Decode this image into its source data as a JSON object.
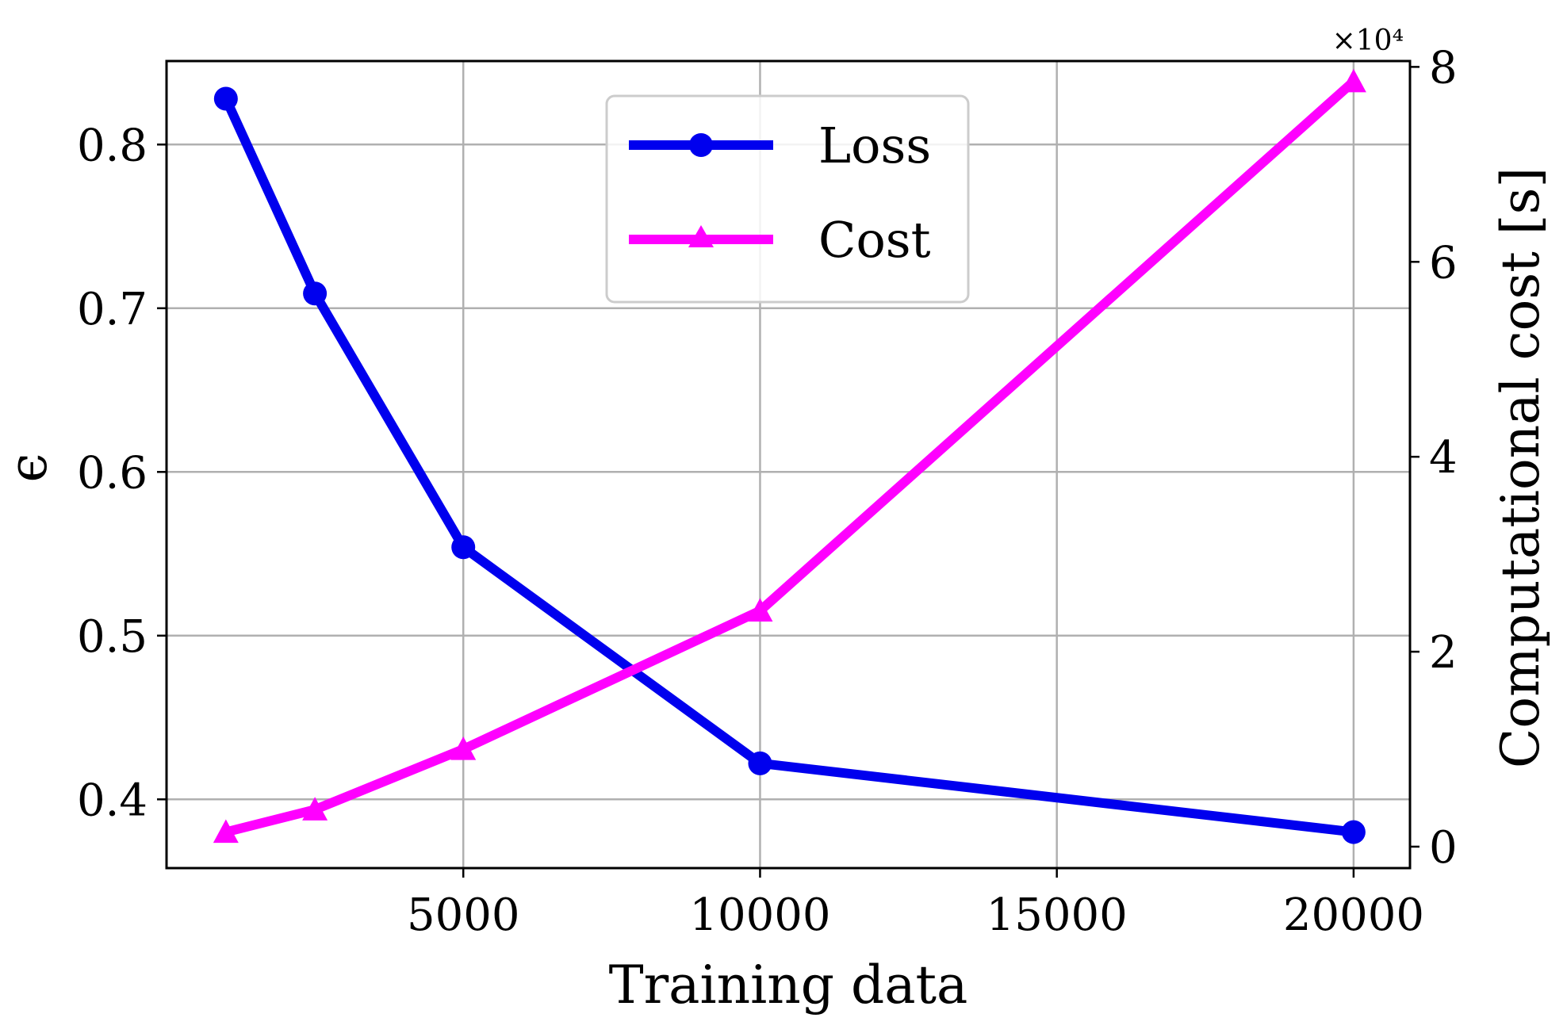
{
  "chart_data": {
    "type": "line",
    "title": "",
    "xlabel": "Training data",
    "ylabel": "ϵ",
    "y2label": "Computational cost [s]",
    "y2_offset_text": "×10⁴",
    "x_ticks": [
      5000,
      10000,
      15000,
      20000
    ],
    "x_tick_labels": [
      "5000",
      "10000",
      "15000",
      "20000"
    ],
    "y_ticks": [
      0.4,
      0.5,
      0.6,
      0.7,
      0.8
    ],
    "y_tick_labels": [
      "0.4",
      "0.5",
      "0.6",
      "0.7",
      "0.8"
    ],
    "y2_ticks": [
      0,
      2,
      4,
      6,
      8
    ],
    "y2_tick_labels": [
      "0",
      "2",
      "4",
      "6",
      "8"
    ],
    "xlim": [
      0,
      20950
    ],
    "ylim": [
      0.358,
      0.851
    ],
    "y2lim": [
      -0.22,
      8.06
    ],
    "grid": true,
    "legend_position": "top-center",
    "x": [
      1000,
      2500,
      5000,
      10000,
      20000
    ],
    "series": [
      {
        "name": "Loss",
        "axis": "left",
        "marker": "circle",
        "color": "#0000ee",
        "values": [
          0.828,
          0.709,
          0.554,
          0.422,
          0.38
        ]
      },
      {
        "name": "Cost",
        "axis": "right",
        "marker": "triangle",
        "color": "#ff00ff",
        "scale_factor": 10000,
        "values": [
          0.15,
          0.38,
          1.0,
          2.42,
          7.85
        ]
      }
    ]
  }
}
